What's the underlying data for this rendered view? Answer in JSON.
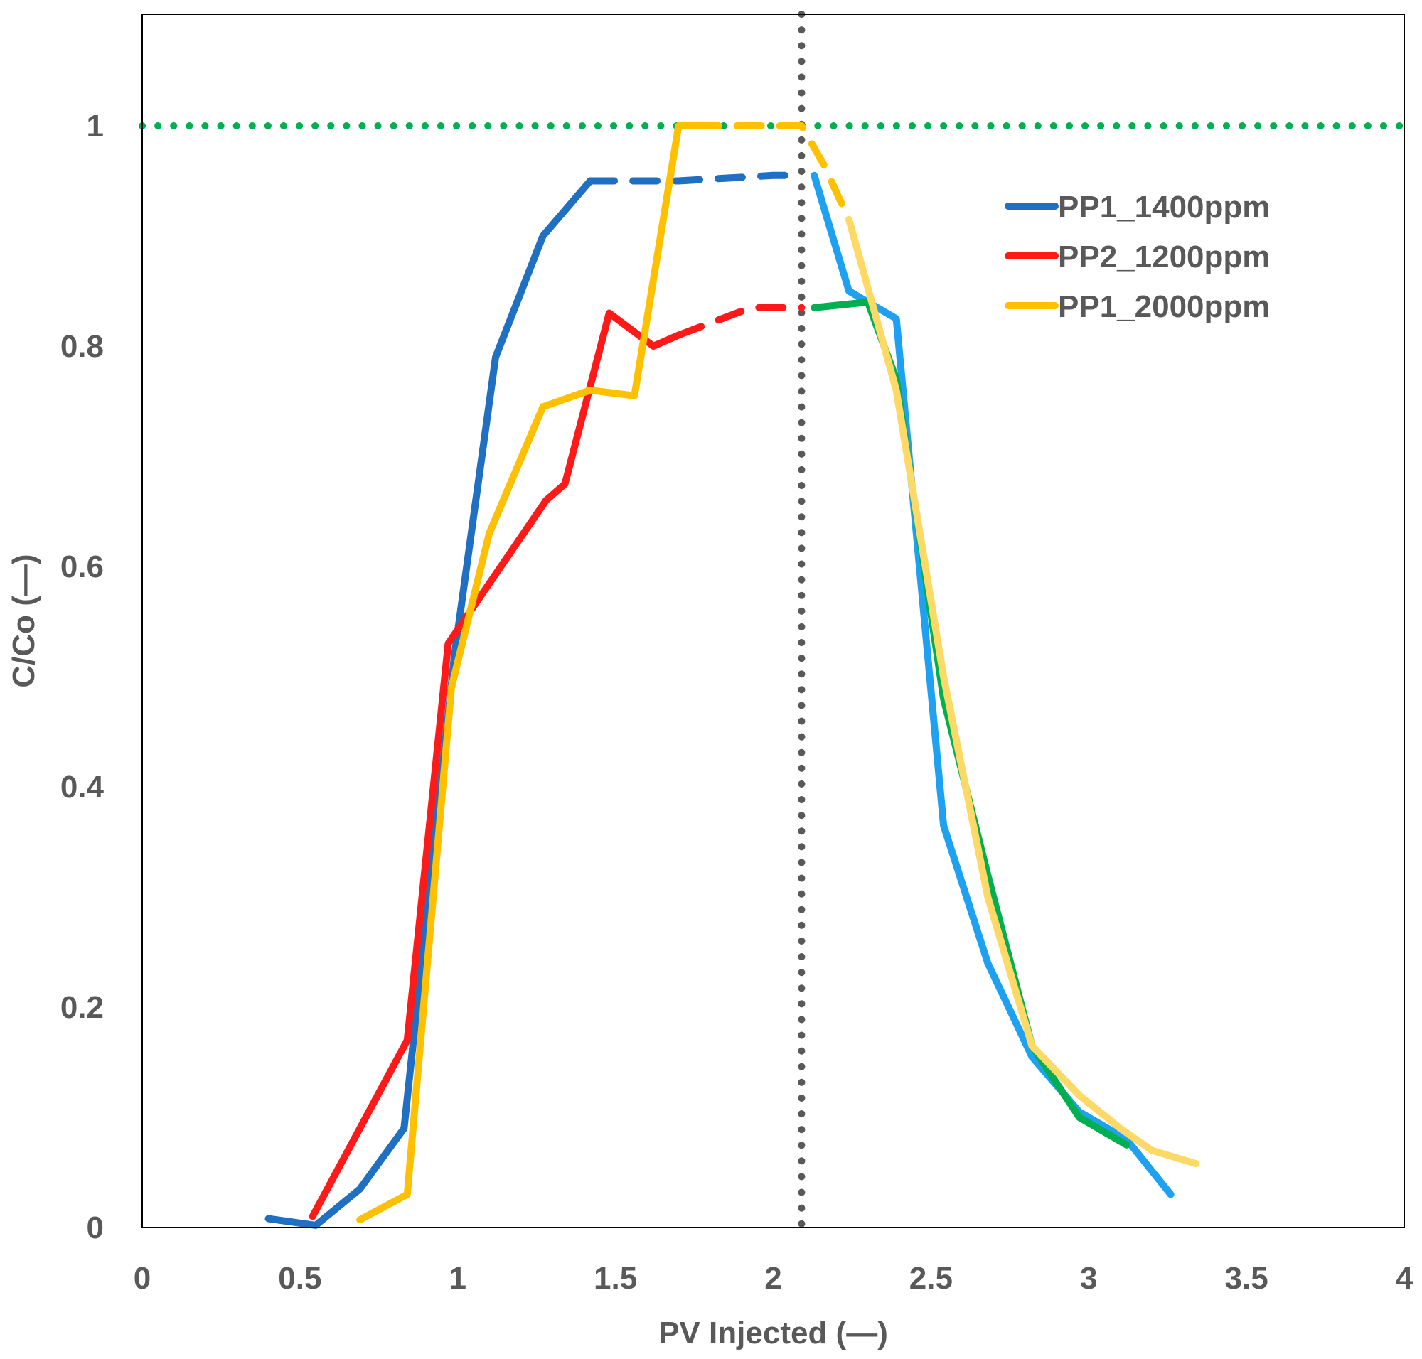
{
  "chart_data": {
    "type": "line",
    "title": "",
    "xlabel": "PV Injected (—)",
    "ylabel": "C/Co (—)",
    "xlim": [
      0,
      4
    ],
    "ylim": [
      0,
      1.1
    ],
    "x_ticks": [
      0,
      0.5,
      1,
      1.5,
      2,
      2.5,
      3,
      3.5,
      4
    ],
    "x_tick_labels": [
      "0",
      "0.5",
      "1",
      "1.5",
      "2",
      "2.5",
      "3",
      "3.5",
      "4"
    ],
    "y_ticks": [
      0,
      0.2,
      0.4,
      0.6,
      0.8,
      1
    ],
    "y_tick_labels": [
      "0",
      "0.2",
      "0.4",
      "0.6",
      "0.8",
      "1"
    ],
    "grid": false,
    "legend_position": "top-right",
    "legend": [
      {
        "name": "PP1_1400ppm",
        "color": "#1f6fc2"
      },
      {
        "name": "PP2_1200ppm",
        "color": "#ff1a1a"
      },
      {
        "name": "PP1_2000ppm",
        "color": "#ffc000"
      }
    ],
    "reference_lines": [
      {
        "orientation": "horizontal",
        "value": 1,
        "style": "dotted",
        "color": "#00b050"
      },
      {
        "orientation": "vertical",
        "value": 2.09,
        "style": "dotted",
        "color": "#595959"
      }
    ],
    "series": [
      {
        "name": "PP1_1400ppm",
        "segment": "injection",
        "color": "#1f6fc2",
        "style": "solid",
        "points": [
          [
            0.4,
            0.008
          ],
          [
            0.55,
            0.002
          ],
          [
            0.69,
            0.035
          ],
          [
            0.83,
            0.09
          ],
          [
            0.99,
            0.52
          ],
          [
            1.12,
            0.79
          ],
          [
            1.27,
            0.9
          ],
          [
            1.42,
            0.95
          ]
        ]
      },
      {
        "name": "PP1_1400ppm",
        "segment": "plateau",
        "color": "#1f6fc2",
        "style": "dashed",
        "points": [
          [
            1.42,
            0.95
          ],
          [
            1.7,
            0.95
          ],
          [
            2.0,
            0.955
          ],
          [
            2.09,
            0.955
          ]
        ]
      },
      {
        "name": "PP1_1400ppm",
        "segment": "postflush",
        "color": "#1ea1f0",
        "style": "solid",
        "points": [
          [
            2.13,
            0.955
          ],
          [
            2.24,
            0.85
          ],
          [
            2.39,
            0.825
          ],
          [
            2.54,
            0.365
          ],
          [
            2.68,
            0.24
          ],
          [
            2.82,
            0.155
          ],
          [
            2.97,
            0.105
          ],
          [
            3.12,
            0.08
          ],
          [
            3.26,
            0.03
          ]
        ]
      },
      {
        "name": "PP2_1200ppm",
        "segment": "injection",
        "color": "#ff1a1a",
        "style": "solid",
        "points": [
          [
            0.54,
            0.01
          ],
          [
            0.84,
            0.17
          ],
          [
            0.97,
            0.53
          ],
          [
            1.28,
            0.66
          ],
          [
            1.34,
            0.675
          ],
          [
            1.48,
            0.83
          ],
          [
            1.62,
            0.8
          ],
          [
            1.7,
            0.81
          ]
        ]
      },
      {
        "name": "PP2_1200ppm",
        "segment": "plateau",
        "color": "#ff1a1a",
        "style": "dashed",
        "points": [
          [
            1.7,
            0.81
          ],
          [
            1.93,
            0.835
          ],
          [
            2.09,
            0.835
          ]
        ]
      },
      {
        "name": "PP2_1200ppm",
        "segment": "postflush",
        "color": "#00b050",
        "style": "solid",
        "points": [
          [
            2.13,
            0.835
          ],
          [
            2.3,
            0.84
          ],
          [
            2.39,
            0.77
          ],
          [
            2.54,
            0.48
          ],
          [
            2.68,
            0.32
          ],
          [
            2.82,
            0.165
          ],
          [
            2.97,
            0.1
          ],
          [
            3.12,
            0.075
          ]
        ]
      },
      {
        "name": "PP1_2000ppm",
        "segment": "injection",
        "color": "#ffc000",
        "style": "solid",
        "points": [
          [
            0.69,
            0.007
          ],
          [
            0.84,
            0.03
          ],
          [
            0.98,
            0.49
          ],
          [
            1.1,
            0.63
          ],
          [
            1.27,
            0.745
          ],
          [
            1.42,
            0.76
          ],
          [
            1.56,
            0.755
          ],
          [
            1.7,
            1.0
          ],
          [
            1.75,
            1.0
          ]
        ]
      },
      {
        "name": "PP1_2000ppm",
        "segment": "plateau",
        "color": "#ffc000",
        "style": "dashed",
        "points": [
          [
            1.75,
            1.0
          ],
          [
            2.09,
            1.0
          ],
          [
            2.16,
            0.965
          ],
          [
            2.24,
            0.915
          ]
        ]
      },
      {
        "name": "PP1_2000ppm",
        "segment": "postflush",
        "color": "#ffd966",
        "style": "solid",
        "points": [
          [
            2.24,
            0.915
          ],
          [
            2.39,
            0.76
          ],
          [
            2.54,
            0.5
          ],
          [
            2.68,
            0.3
          ],
          [
            2.82,
            0.165
          ],
          [
            2.97,
            0.12
          ],
          [
            3.1,
            0.09
          ],
          [
            3.2,
            0.07
          ],
          [
            3.34,
            0.058
          ]
        ]
      }
    ]
  }
}
